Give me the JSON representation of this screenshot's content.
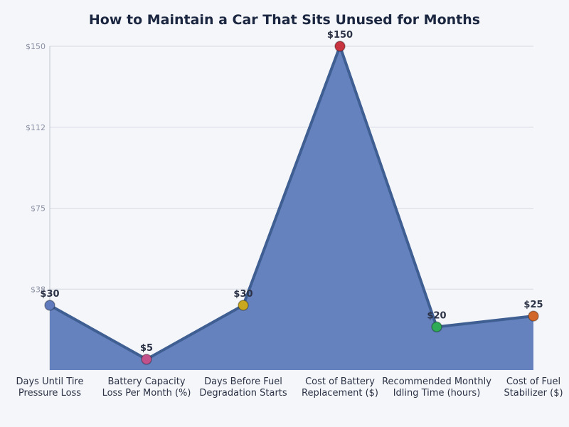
{
  "chart_data": {
    "type": "area",
    "title": "How to Maintain a Car That Sits Unused for Months",
    "categories": [
      [
        "Days Until Tire",
        "Pressure Loss"
      ],
      [
        "Battery Capacity",
        "Loss Per Month (%)"
      ],
      [
        "Days Before Fuel",
        "Degradation Starts"
      ],
      [
        "Cost of Battery",
        "Replacement ($)"
      ],
      [
        "Recommended Monthly",
        "Idling Time (hours)"
      ],
      [
        "Cost of Fuel",
        "Stabilizer ($)"
      ]
    ],
    "values": [
      30,
      5,
      30,
      150,
      20,
      25
    ],
    "data_labels": [
      "$30",
      "$5",
      "$30",
      "$150",
      "$20",
      "$25"
    ],
    "ylim": [
      0,
      150
    ],
    "yticks": [
      37.5,
      75,
      112.5,
      150
    ],
    "ytick_labels": [
      "$38",
      "$75",
      "$112",
      "$150"
    ],
    "grid": true,
    "colors": {
      "fill": "#6582bf",
      "line": "#3f5f93",
      "points": [
        "#5f7bbd",
        "#c2508a",
        "#c9a820",
        "#c8343f",
        "#2faa57",
        "#d2672a"
      ]
    }
  }
}
